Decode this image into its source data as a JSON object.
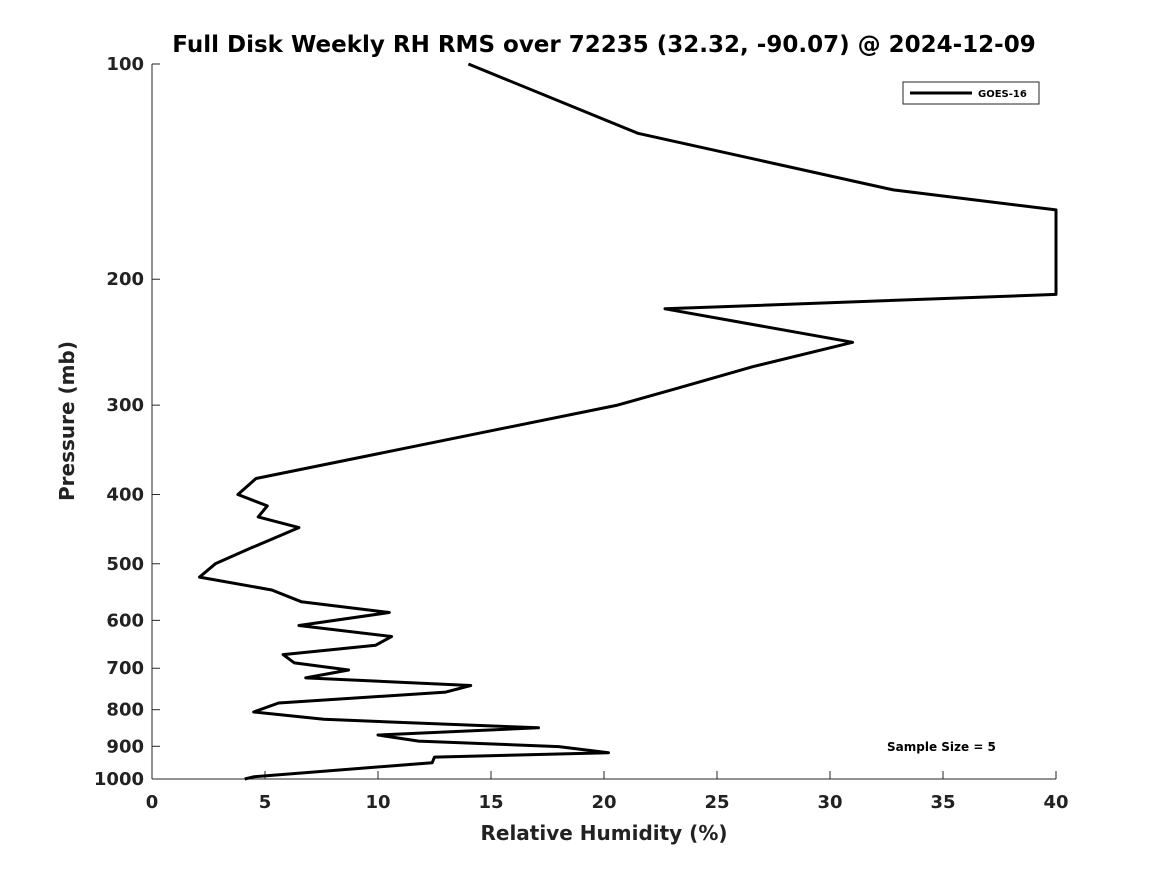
{
  "chart_data": {
    "type": "line",
    "title": "Full Disk Weekly RH RMS over 72235 (32.32, -90.07) @ 2024-12-09",
    "xlabel": "Relative Humidity (%)",
    "ylabel": "Pressure (mb)",
    "xlim": [
      0,
      40
    ],
    "ylim": [
      100,
      1000
    ],
    "yscale": "log",
    "xticks": [
      0,
      5,
      10,
      15,
      20,
      25,
      30,
      35,
      40
    ],
    "yticks": [
      100,
      200,
      300,
      400,
      500,
      600,
      700,
      800,
      900,
      1000
    ],
    "legend_position": "top-right",
    "annotation": "Sample Size = 5",
    "series": [
      {
        "name": "GOES-16",
        "color": "#000000",
        "points": [
          [
            14.0,
            100
          ],
          [
            21.5,
            125
          ],
          [
            32.8,
            150
          ],
          [
            40.0,
            160
          ],
          [
            40.0,
            210
          ],
          [
            22.7,
            220
          ],
          [
            31.0,
            245
          ],
          [
            26.6,
            265
          ],
          [
            23.1,
            285
          ],
          [
            20.6,
            300
          ],
          [
            4.6,
            380
          ],
          [
            3.8,
            400
          ],
          [
            5.1,
            415
          ],
          [
            4.7,
            430
          ],
          [
            6.5,
            445
          ],
          [
            4.4,
            475
          ],
          [
            2.8,
            500
          ],
          [
            2.1,
            522
          ],
          [
            5.3,
            544
          ],
          [
            6.6,
            565
          ],
          [
            10.5,
            585
          ],
          [
            6.5,
            610
          ],
          [
            10.6,
            632
          ],
          [
            9.9,
            650
          ],
          [
            5.8,
            670
          ],
          [
            6.3,
            688
          ],
          [
            8.7,
            704
          ],
          [
            6.8,
            722
          ],
          [
            14.1,
            740
          ],
          [
            13.0,
            756
          ],
          [
            5.6,
            783
          ],
          [
            4.5,
            806
          ],
          [
            7.6,
            825
          ],
          [
            17.1,
            848
          ],
          [
            10.0,
            868
          ],
          [
            11.8,
            885
          ],
          [
            18.0,
            901
          ],
          [
            20.2,
            919
          ],
          [
            12.5,
            932
          ],
          [
            12.4,
            949
          ],
          [
            4.5,
            993
          ],
          [
            4.1,
            1000
          ]
        ]
      }
    ]
  }
}
